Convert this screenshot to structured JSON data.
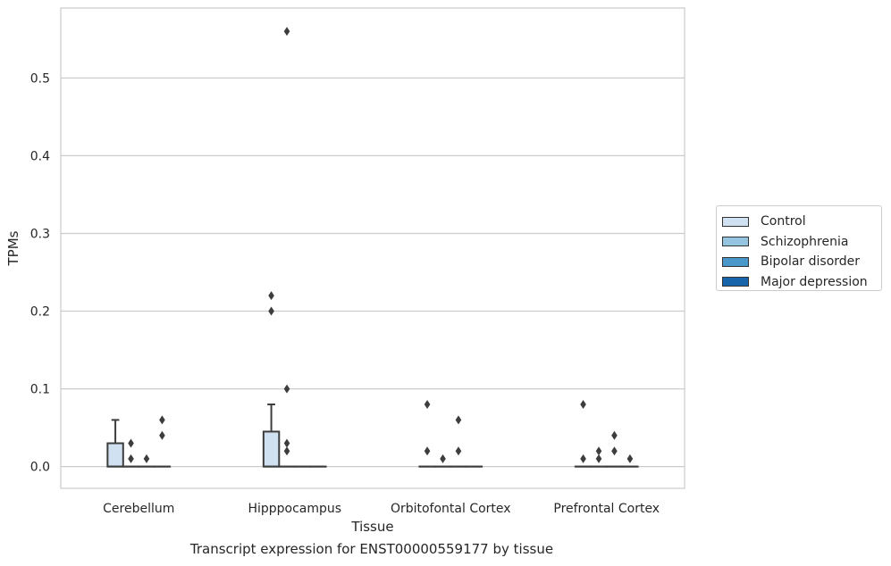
{
  "caption": "Transcript expression for ENST00000559177 by tissue",
  "chart_data": {
    "type": "box",
    "xlabel": "Tissue",
    "ylabel": "TPMs",
    "categories": [
      "Cerebellum",
      "Hipppocampus",
      "Orbitofontal Cortex",
      "Prefrontal Cortex"
    ],
    "ylim": [
      -0.028,
      0.59
    ],
    "yticks": [
      0.0,
      0.1,
      0.2,
      0.3,
      0.4,
      0.5
    ],
    "ytick_labels": [
      "0.0",
      "0.1",
      "0.2",
      "0.3",
      "0.4",
      "0.5"
    ],
    "grid": "horizontal",
    "legend_position": "right",
    "series": [
      {
        "name": "Control",
        "color": "#d0e1f2",
        "boxes": [
          {
            "q1": 0.0,
            "median": 0.0,
            "q3": 0.03,
            "whislo": 0.0,
            "whishi": 0.06,
            "fliers": []
          },
          {
            "q1": 0.0,
            "median": 0.0,
            "q3": 0.045,
            "whislo": 0.0,
            "whishi": 0.08,
            "fliers": [
              0.2,
              0.22
            ]
          },
          {
            "q1": 0.0,
            "median": 0.0,
            "q3": 0.0,
            "whislo": 0.0,
            "whishi": 0.0,
            "fliers": [
              0.02,
              0.08
            ]
          },
          {
            "q1": 0.0,
            "median": 0.0,
            "q3": 0.0,
            "whislo": 0.0,
            "whishi": 0.0,
            "fliers": [
              0.01,
              0.08
            ]
          }
        ]
      },
      {
        "name": "Schizophrenia",
        "color": "#94c4df",
        "boxes": [
          {
            "q1": 0.0,
            "median": 0.0,
            "q3": 0.0,
            "whislo": 0.0,
            "whishi": 0.0,
            "fliers": [
              0.01,
              0.03
            ]
          },
          {
            "q1": 0.0,
            "median": 0.0,
            "q3": 0.0,
            "whislo": 0.0,
            "whishi": 0.0,
            "fliers": [
              0.02,
              0.03,
              0.1,
              0.56
            ]
          },
          {
            "q1": 0.0,
            "median": 0.0,
            "q3": 0.0,
            "whislo": 0.0,
            "whishi": 0.0,
            "fliers": [
              0.01
            ]
          },
          {
            "q1": 0.0,
            "median": 0.0,
            "q3": 0.0,
            "whislo": 0.0,
            "whishi": 0.0,
            "fliers": [
              0.01,
              0.02
            ]
          }
        ]
      },
      {
        "name": "Bipolar disorder",
        "color": "#4a98c9",
        "boxes": [
          {
            "q1": 0.0,
            "median": 0.0,
            "q3": 0.0,
            "whislo": 0.0,
            "whishi": 0.0,
            "fliers": [
              0.01
            ]
          },
          {
            "q1": 0.0,
            "median": 0.0,
            "q3": 0.0,
            "whislo": 0.0,
            "whishi": 0.0,
            "fliers": []
          },
          {
            "q1": 0.0,
            "median": 0.0,
            "q3": 0.0,
            "whislo": 0.0,
            "whishi": 0.0,
            "fliers": [
              0.02,
              0.06
            ]
          },
          {
            "q1": 0.0,
            "median": 0.0,
            "q3": 0.0,
            "whislo": 0.0,
            "whishi": 0.0,
            "fliers": [
              0.02,
              0.04
            ]
          }
        ]
      },
      {
        "name": "Major depression",
        "color": "#1764ab",
        "boxes": [
          {
            "q1": 0.0,
            "median": 0.0,
            "q3": 0.0,
            "whislo": 0.0,
            "whishi": 0.0,
            "fliers": [
              0.04,
              0.06
            ]
          },
          {
            "q1": 0.0,
            "median": 0.0,
            "q3": 0.0,
            "whislo": 0.0,
            "whishi": 0.0,
            "fliers": []
          },
          {
            "q1": 0.0,
            "median": 0.0,
            "q3": 0.0,
            "whislo": 0.0,
            "whishi": 0.0,
            "fliers": []
          },
          {
            "q1": 0.0,
            "median": 0.0,
            "q3": 0.0,
            "whislo": 0.0,
            "whishi": 0.0,
            "fliers": [
              0.01
            ]
          }
        ]
      }
    ]
  }
}
